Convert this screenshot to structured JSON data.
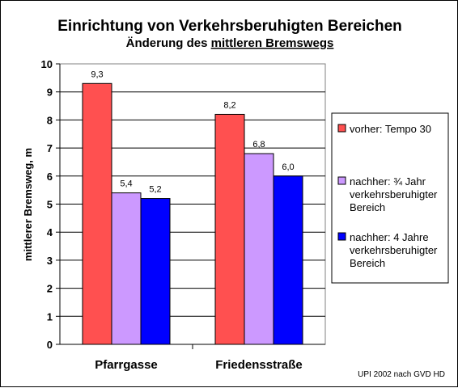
{
  "chart_data": {
    "type": "bar",
    "title": "Einrichtung von Verkehrsberuhigten Bereichen",
    "subtitle_prefix": "Änderung des ",
    "subtitle_underlined": "mittleren Bremswegs",
    "ylabel": "mittlerer Bremsweg, m",
    "xlabel": "",
    "ylim": [
      0,
      10
    ],
    "yticks": [
      "0",
      "1",
      "2",
      "3",
      "4",
      "5",
      "6",
      "7",
      "8",
      "9",
      "10"
    ],
    "grid": true,
    "legend_position": "right",
    "categories": [
      "Pfarrgasse",
      "Friedensstraße"
    ],
    "series": [
      {
        "name": "vorher: Tempo 30",
        "legend_lines": [
          "vorher: Tempo 30"
        ],
        "color": "#FF5050",
        "values": [
          9.3,
          8.2
        ],
        "labels": [
          "9,3",
          "8,2"
        ]
      },
      {
        "name": "nachher: ¾ Jahr verkehrsberuhigter Bereich",
        "legend_lines": [
          "nachher: ¾ Jahr",
          "verkehrsberuhigter",
          "Bereich"
        ],
        "color": "#CC99FF",
        "values": [
          5.4,
          6.8
        ],
        "labels": [
          "5,4",
          "6,8"
        ]
      },
      {
        "name": "nachher: 4 Jahre verkehrsberuhigter Bereich",
        "legend_lines": [
          "nachher: 4 Jahre",
          "verkehrsberuhigter",
          "Bereich"
        ],
        "color": "#0000FF",
        "values": [
          5.2,
          6.0
        ],
        "labels": [
          "5,2",
          "6,0"
        ]
      }
    ],
    "source": "UPI 2002 nach GVD HD"
  }
}
